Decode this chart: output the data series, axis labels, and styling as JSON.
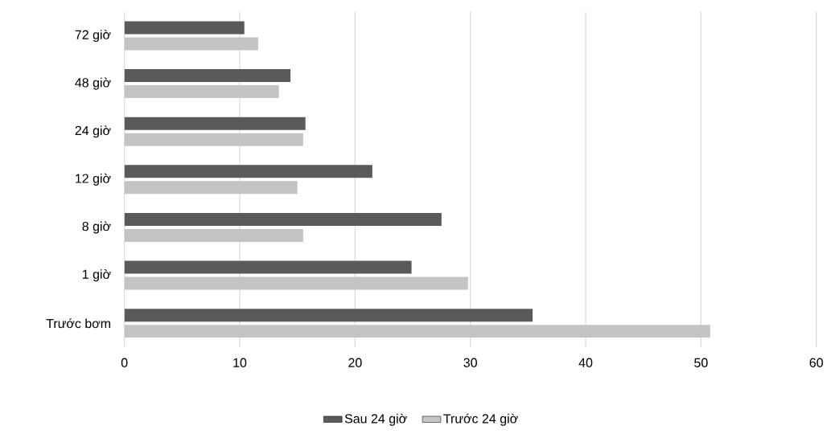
{
  "chart_data": {
    "type": "bar",
    "orientation": "horizontal",
    "categories": [
      "72 giờ",
      "48 giờ",
      "24 giờ",
      "12 giờ",
      "8 giờ",
      "1 giờ",
      "Trước bơm"
    ],
    "series": [
      {
        "name": "Sau 24 giờ",
        "color": "#5a5a5a",
        "values": [
          10.4,
          14.4,
          15.7,
          21.5,
          27.5,
          24.9,
          35.4
        ]
      },
      {
        "name": "Trước 24 giờ",
        "color": "#c4c4c4",
        "values": [
          11.6,
          13.4,
          15.5,
          15.0,
          15.5,
          29.8,
          50.8
        ]
      }
    ],
    "xlim": [
      0,
      60
    ],
    "xticks": [
      0,
      10,
      20,
      30,
      40,
      50,
      60
    ],
    "grid": "x",
    "legend": "bottom"
  }
}
